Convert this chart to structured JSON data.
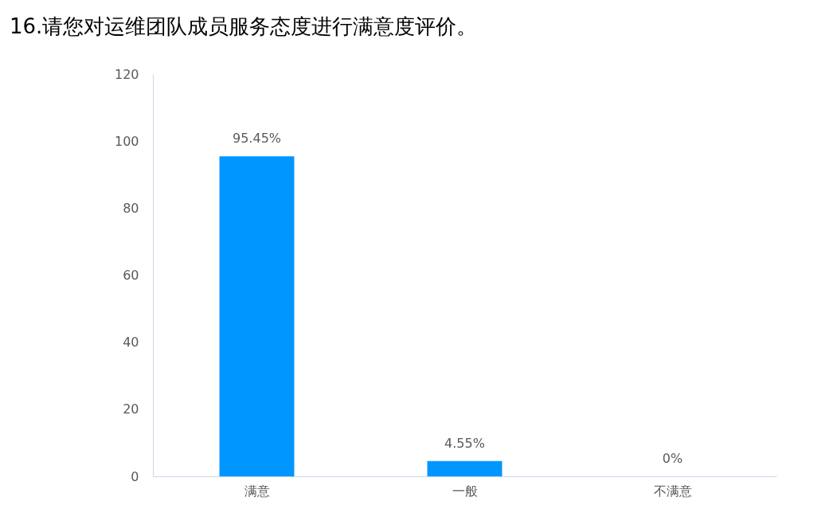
{
  "chart_data": {
    "type": "bar",
    "title": "16.请您对运维团队成员服务态度进行满意度评价。",
    "categories": [
      "满意",
      "一般",
      "不满意"
    ],
    "values": [
      95.45,
      4.55,
      0
    ],
    "value_labels": [
      "95.45%",
      "4.55%",
      "0%"
    ],
    "color": "#0096ff",
    "ylim": [
      0,
      120
    ],
    "yticks": [
      0,
      20,
      40,
      60,
      80,
      100,
      120
    ],
    "grid": false
  }
}
